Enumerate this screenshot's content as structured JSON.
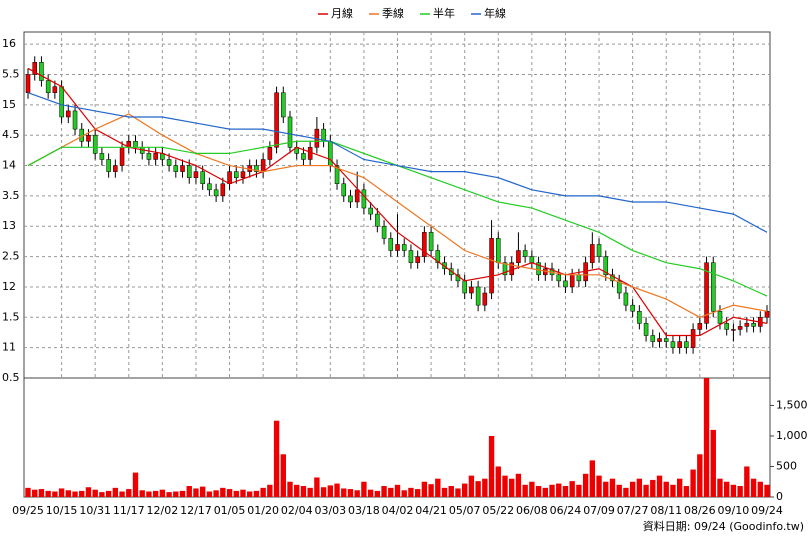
{
  "chart_data": [
    {
      "type": "candlestick",
      "categories": [
        "09/25",
        null,
        null,
        null,
        null,
        "10/15",
        null,
        null,
        null,
        null,
        "10/31",
        null,
        null,
        null,
        null,
        "11/17",
        null,
        null,
        null,
        null,
        "12/02",
        null,
        null,
        null,
        null,
        "12/17",
        null,
        null,
        null,
        null,
        "01/05",
        null,
        null,
        null,
        null,
        "01/20",
        null,
        null,
        null,
        null,
        "02/04",
        null,
        null,
        null,
        null,
        "03/03",
        null,
        null,
        null,
        null,
        "03/18",
        null,
        null,
        null,
        null,
        "04/02",
        null,
        null,
        null,
        null,
        "04/21",
        null,
        null,
        null,
        null,
        "05/07",
        null,
        null,
        null,
        null,
        "05/22",
        null,
        null,
        null,
        null,
        "06/08",
        null,
        null,
        null,
        null,
        "06/24",
        null,
        null,
        null,
        null,
        "07/09",
        null,
        null,
        null,
        null,
        "07/27",
        null,
        null,
        null,
        null,
        "08/11",
        null,
        null,
        null,
        null,
        "08/26",
        null,
        null,
        null,
        null,
        "09/10",
        null,
        null,
        null,
        null,
        "09/24"
      ],
      "open": [
        15.2,
        15.5,
        15.7,
        15.4,
        15.2,
        15.3,
        14.8,
        14.9,
        14.6,
        14.4,
        14.5,
        14.2,
        14.1,
        13.9,
        14.0,
        14.3,
        14.4,
        14.3,
        14.2,
        14.1,
        14.2,
        14.1,
        14.0,
        13.9,
        14.0,
        13.8,
        13.9,
        13.7,
        13.6,
        13.5,
        13.7,
        13.9,
        13.8,
        13.9,
        14.0,
        13.9,
        14.1,
        14.3,
        15.2,
        14.8,
        14.3,
        14.2,
        14.1,
        14.3,
        14.6,
        14.4,
        14.0,
        13.7,
        13.5,
        13.4,
        13.6,
        13.3,
        13.2,
        13.0,
        12.8,
        12.6,
        12.7,
        12.6,
        12.4,
        12.5,
        12.9,
        12.6,
        12.4,
        12.3,
        12.2,
        12.1,
        11.9,
        12.0,
        11.7,
        11.9,
        12.8,
        12.4,
        12.2,
        12.4,
        12.6,
        12.5,
        12.4,
        12.2,
        12.3,
        12.2,
        12.1,
        12.0,
        12.2,
        12.1,
        12.4,
        12.7,
        12.5,
        12.2,
        12.1,
        11.9,
        11.7,
        11.6,
        11.4,
        11.2,
        11.1,
        11.15,
        11.1,
        11.0,
        11.1,
        11.0,
        11.3,
        11.4,
        12.4,
        11.6,
        11.4,
        11.3,
        11.3,
        11.35,
        11.4,
        11.35,
        11.5
      ],
      "high": [
        15.6,
        15.8,
        15.8,
        15.5,
        15.4,
        15.4,
        15.0,
        15.0,
        14.7,
        14.6,
        14.6,
        14.3,
        14.2,
        14.1,
        14.4,
        14.5,
        14.5,
        14.4,
        14.3,
        14.3,
        14.3,
        14.2,
        14.1,
        14.1,
        14.1,
        14.0,
        14.0,
        13.8,
        13.7,
        13.8,
        14.0,
        14.0,
        14.0,
        14.1,
        14.1,
        14.2,
        14.4,
        15.3,
        15.3,
        14.9,
        14.4,
        14.3,
        14.4,
        14.8,
        14.7,
        14.5,
        14.1,
        13.8,
        13.6,
        13.9,
        13.7,
        13.4,
        13.3,
        13.1,
        12.9,
        13.2,
        12.8,
        12.7,
        12.6,
        13.0,
        13.0,
        12.7,
        12.5,
        12.4,
        12.3,
        12.2,
        12.1,
        12.1,
        12.0,
        13.1,
        12.9,
        12.5,
        12.5,
        12.9,
        12.7,
        12.6,
        12.5,
        12.4,
        12.4,
        12.3,
        12.2,
        12.3,
        12.3,
        12.5,
        12.9,
        12.8,
        12.6,
        12.3,
        12.2,
        12.0,
        11.8,
        11.7,
        11.5,
        11.3,
        11.25,
        11.25,
        11.2,
        11.2,
        11.2,
        11.4,
        11.5,
        12.5,
        12.5,
        11.7,
        11.5,
        11.4,
        11.45,
        11.5,
        11.5,
        11.6,
        11.7
      ],
      "low": [
        15.1,
        15.4,
        15.3,
        15.1,
        15.1,
        14.7,
        14.7,
        14.5,
        14.3,
        14.3,
        14.1,
        14.0,
        13.8,
        13.8,
        13.9,
        14.2,
        14.2,
        14.1,
        14.0,
        14.0,
        14.0,
        13.9,
        13.8,
        13.8,
        13.7,
        13.7,
        13.6,
        13.5,
        13.4,
        13.4,
        13.6,
        13.7,
        13.7,
        13.8,
        13.8,
        13.8,
        14.0,
        14.2,
        14.7,
        14.2,
        14.1,
        14.0,
        14.0,
        14.2,
        14.3,
        13.9,
        13.6,
        13.4,
        13.3,
        13.3,
        13.2,
        13.1,
        12.9,
        12.7,
        12.5,
        12.5,
        12.5,
        12.3,
        12.3,
        12.4,
        12.5,
        12.3,
        12.2,
        12.1,
        12.0,
        11.8,
        11.8,
        11.6,
        11.6,
        11.8,
        12.3,
        12.1,
        12.1,
        12.3,
        12.4,
        12.3,
        12.1,
        12.1,
        12.1,
        12.0,
        11.9,
        11.9,
        12.0,
        12.0,
        12.3,
        12.4,
        12.1,
        12.0,
        11.8,
        11.6,
        11.5,
        11.3,
        11.1,
        11.0,
        11.0,
        11.0,
        10.9,
        10.9,
        10.9,
        10.9,
        11.2,
        11.3,
        11.5,
        11.3,
        11.2,
        11.1,
        11.2,
        11.25,
        11.25,
        11.25,
        11.4
      ],
      "close": [
        15.5,
        15.7,
        15.4,
        15.2,
        15.3,
        14.8,
        14.9,
        14.6,
        14.4,
        14.5,
        14.2,
        14.1,
        13.9,
        14.0,
        14.3,
        14.4,
        14.3,
        14.2,
        14.1,
        14.2,
        14.1,
        14.0,
        13.9,
        14.0,
        13.8,
        13.9,
        13.7,
        13.6,
        13.5,
        13.7,
        13.9,
        13.8,
        13.9,
        14.0,
        13.9,
        14.1,
        14.3,
        15.2,
        14.8,
        14.3,
        14.2,
        14.1,
        14.3,
        14.6,
        14.4,
        14.0,
        13.7,
        13.5,
        13.4,
        13.6,
        13.3,
        13.2,
        13.0,
        12.8,
        12.6,
        12.7,
        12.6,
        12.4,
        12.5,
        12.9,
        12.6,
        12.4,
        12.3,
        12.2,
        12.1,
        11.9,
        12.0,
        11.7,
        11.9,
        12.8,
        12.4,
        12.2,
        12.4,
        12.6,
        12.5,
        12.4,
        12.2,
        12.3,
        12.2,
        12.1,
        12.0,
        12.2,
        12.1,
        12.4,
        12.7,
        12.5,
        12.2,
        12.1,
        11.9,
        11.7,
        11.6,
        11.4,
        11.2,
        11.1,
        11.15,
        11.1,
        11.0,
        11.1,
        11.0,
        11.3,
        11.4,
        12.4,
        11.6,
        11.4,
        11.3,
        11.3,
        11.35,
        11.4,
        11.35,
        11.5,
        11.6
      ],
      "up_color": "#ee0000",
      "down_color": "#22cc22",
      "ylim": [
        10.5,
        16.2
      ],
      "yticks": [
        {
          "value": 10.5,
          "label": "0.5"
        },
        11,
        {
          "value": 11.5,
          "label": "1.5"
        },
        12,
        {
          "value": 12.5,
          "label": "2.5"
        },
        13,
        {
          "value": 13.5,
          "label": "3.5"
        },
        14,
        {
          "value": 14.5,
          "label": "4.5"
        },
        15,
        {
          "value": 15.5,
          "label": "5.5"
        },
        16
      ],
      "grid": true,
      "series": [
        {
          "name": "月線",
          "color": "#dd0000",
          "x": [
            0,
            5,
            10,
            15,
            20,
            25,
            30,
            35,
            40,
            45,
            50,
            55,
            60,
            65,
            70,
            75,
            80,
            85,
            90,
            95,
            100,
            105,
            110
          ],
          "values": [
            15.6,
            15.3,
            14.6,
            14.3,
            14.2,
            14.0,
            13.7,
            13.9,
            14.3,
            14.1,
            13.5,
            12.9,
            12.5,
            12.1,
            12.2,
            12.4,
            12.2,
            12.3,
            12.0,
            11.2,
            11.2,
            11.5,
            11.4
          ]
        },
        {
          "name": "季線",
          "color": "#ee7722",
          "x": [
            0,
            5,
            10,
            15,
            20,
            25,
            30,
            35,
            40,
            45,
            50,
            55,
            60,
            65,
            70,
            75,
            80,
            85,
            90,
            95,
            100,
            105,
            110
          ],
          "values": [
            14.0,
            14.3,
            14.6,
            14.85,
            14.5,
            14.2,
            14.0,
            13.9,
            14.0,
            14.0,
            13.8,
            13.4,
            13.0,
            12.6,
            12.4,
            12.3,
            12.2,
            12.2,
            12.0,
            11.8,
            11.5,
            11.7,
            11.6
          ]
        },
        {
          "name": "半年",
          "color": "#22cc22",
          "x": [
            0,
            5,
            10,
            15,
            20,
            25,
            30,
            35,
            40,
            45,
            50,
            55,
            60,
            65,
            70,
            75,
            80,
            85,
            90,
            95,
            100,
            105,
            110
          ],
          "values": [
            14.0,
            14.3,
            14.3,
            14.3,
            14.3,
            14.2,
            14.2,
            14.3,
            14.4,
            14.4,
            14.2,
            14.0,
            13.8,
            13.6,
            13.4,
            13.3,
            13.1,
            12.9,
            12.6,
            12.4,
            12.3,
            12.1,
            11.85
          ]
        },
        {
          "name": "年線",
          "color": "#2266cc",
          "x": [
            0,
            5,
            10,
            15,
            20,
            25,
            30,
            35,
            40,
            45,
            50,
            55,
            60,
            65,
            70,
            75,
            80,
            85,
            90,
            95,
            100,
            105,
            110
          ],
          "values": [
            15.2,
            15.0,
            14.9,
            14.8,
            14.8,
            14.7,
            14.6,
            14.6,
            14.5,
            14.4,
            14.1,
            14.0,
            13.9,
            13.9,
            13.8,
            13.6,
            13.5,
            13.5,
            13.4,
            13.4,
            13.3,
            13.2,
            12.9
          ]
        }
      ]
    },
    {
      "type": "bar",
      "color": "#ee0000",
      "values": [
        150,
        120,
        130,
        100,
        90,
        140,
        110,
        90,
        100,
        160,
        120,
        80,
        100,
        150,
        90,
        130,
        400,
        110,
        90,
        100,
        120,
        80,
        90,
        100,
        180,
        140,
        170,
        90,
        110,
        150,
        130,
        100,
        120,
        90,
        100,
        150,
        200,
        1250,
        700,
        250,
        200,
        180,
        150,
        320,
        160,
        190,
        220,
        140,
        130,
        110,
        250,
        120,
        100,
        180,
        150,
        200,
        110,
        150,
        130,
        250,
        210,
        300,
        150,
        180,
        140,
        220,
        350,
        260,
        300,
        1000,
        500,
        350,
        300,
        380,
        200,
        250,
        180,
        150,
        200,
        220,
        180,
        260,
        200,
        380,
        600,
        350,
        250,
        300,
        200,
        150,
        250,
        300,
        200,
        280,
        350,
        250,
        200,
        300,
        180,
        450,
        700,
        1950,
        1100,
        300,
        250,
        200,
        180,
        500,
        300,
        250,
        200
      ],
      "ylim": [
        0,
        1950
      ],
      "yticks": [
        0,
        500,
        {
          "value": 1000,
          "label": "1,000"
        },
        {
          "value": 1500,
          "label": "1,500"
        }
      ]
    }
  ],
  "source": "資料日期: 09/24 (Goodinfo.tw)"
}
